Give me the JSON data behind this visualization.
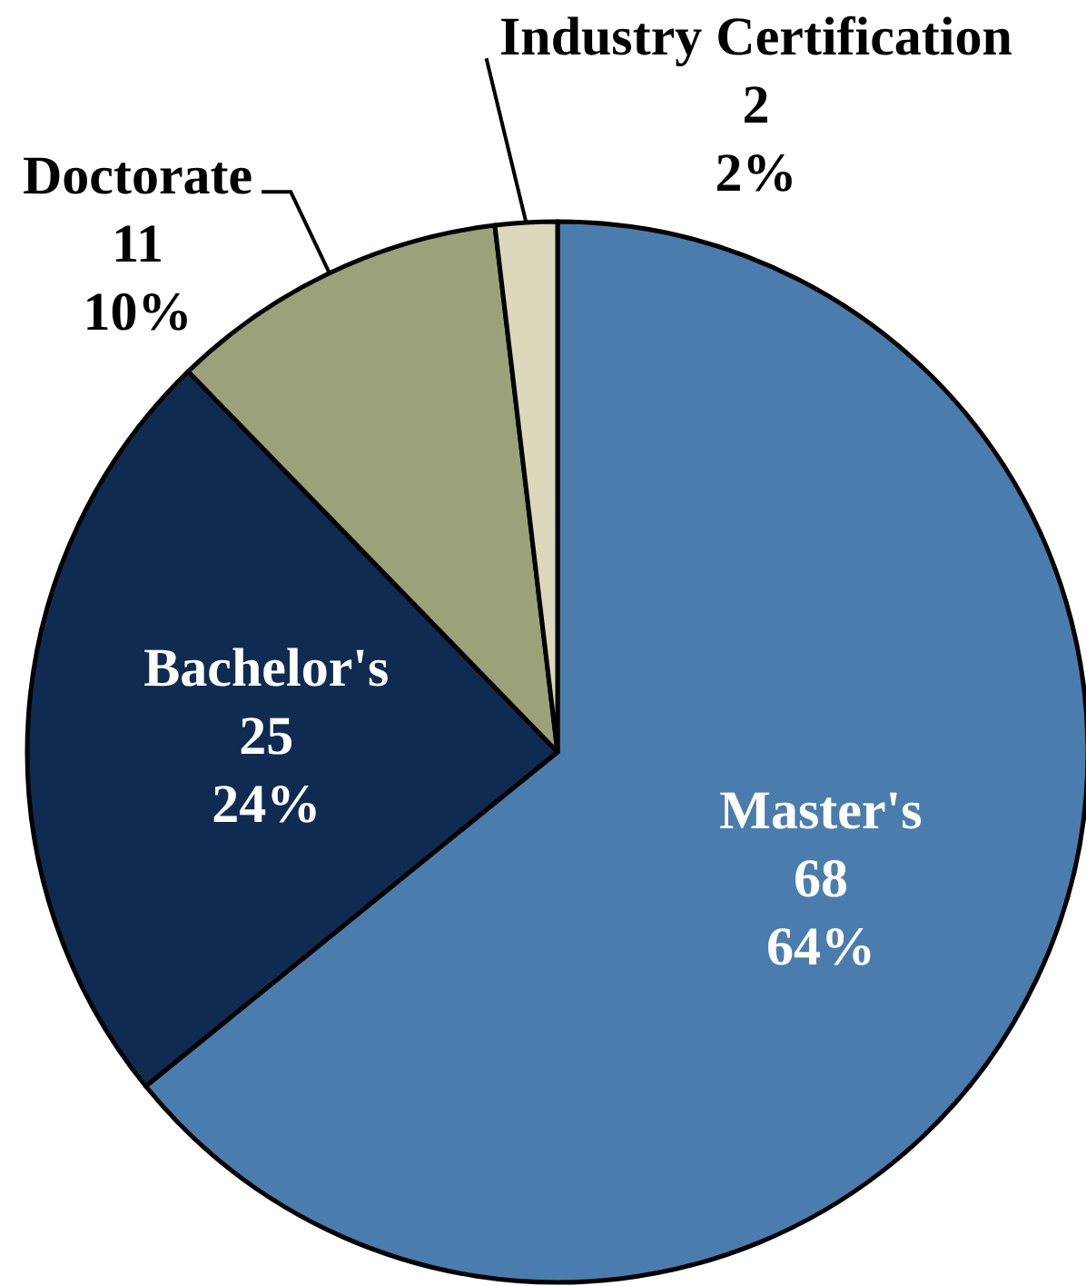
{
  "chart_data": {
    "type": "pie",
    "categories": [
      "Master's",
      "Bachelor's",
      "Doctorate",
      "Industry Certification"
    ],
    "values": [
      68,
      25,
      11,
      2
    ],
    "colors": [
      "#4a7dad",
      "#0f2b52",
      "#9ba27a",
      "#dbd8bb"
    ],
    "value_labels": [
      "68\n64%",
      "25\n24%",
      "11\n10%",
      "2\n2%"
    ]
  }
}
